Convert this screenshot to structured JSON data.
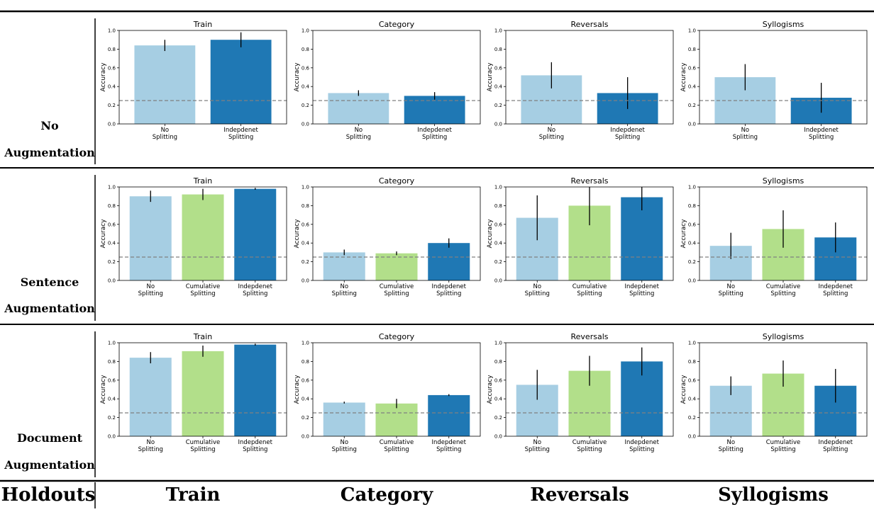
{
  "footer": {
    "row_header": "Holdouts",
    "columns": [
      "Train",
      "Category",
      "Reversals",
      "Syllogisms"
    ]
  },
  "colors": {
    "no_splitting": "#a6cee3",
    "cumulative_splitting": "#b2df8a",
    "independent_splitting": "#1f78b4",
    "baseline": "#808080",
    "errorbar": "#000000"
  },
  "chart_data": [
    {
      "row": "No Augmentation",
      "row_label_lines": [
        "No",
        "Augmentation"
      ],
      "panels": [
        {
          "type": "bar",
          "title": "Train",
          "ylabel": "Accuracy",
          "ylim": [
            0,
            1
          ],
          "yticks": [
            "0.0",
            "0.2",
            "0.4",
            "0.6",
            "0.8",
            "1.0"
          ],
          "baseline": 0.25,
          "bars": [
            {
              "label": [
                "No",
                "Splitting"
              ],
              "value": 0.84,
              "err": 0.06,
              "color": "no_splitting"
            },
            {
              "label": [
                "Indepdenet",
                "Splitting"
              ],
              "value": 0.9,
              "err": 0.08,
              "color": "independent_splitting"
            }
          ]
        },
        {
          "type": "bar",
          "title": "Category",
          "ylabel": "Accuracy",
          "ylim": [
            0,
            1
          ],
          "yticks": [
            "0.0",
            "0.2",
            "0.4",
            "0.6",
            "0.8",
            "1.0"
          ],
          "baseline": 0.25,
          "bars": [
            {
              "label": [
                "No",
                "Splitting"
              ],
              "value": 0.33,
              "err": 0.03,
              "color": "no_splitting"
            },
            {
              "label": [
                "Indepdenet",
                "Splitting"
              ],
              "value": 0.3,
              "err": 0.04,
              "color": "independent_splitting"
            }
          ]
        },
        {
          "type": "bar",
          "title": "Reversals",
          "ylabel": "Accuracy",
          "ylim": [
            0,
            1
          ],
          "yticks": [
            "0.0",
            "0.2",
            "0.4",
            "0.6",
            "0.8",
            "1.0"
          ],
          "baseline": 0.25,
          "bars": [
            {
              "label": [
                "No",
                "Splitting"
              ],
              "value": 0.52,
              "err": 0.14,
              "color": "no_splitting"
            },
            {
              "label": [
                "Indepdenet",
                "Splitting"
              ],
              "value": 0.33,
              "err": 0.17,
              "color": "independent_splitting"
            }
          ]
        },
        {
          "type": "bar",
          "title": "Syllogisms",
          "ylabel": "Accuracy",
          "ylim": [
            0,
            1
          ],
          "yticks": [
            "0.0",
            "0.2",
            "0.4",
            "0.6",
            "0.8",
            "1.0"
          ],
          "baseline": 0.25,
          "bars": [
            {
              "label": [
                "No",
                "Splitting"
              ],
              "value": 0.5,
              "err": 0.14,
              "color": "no_splitting"
            },
            {
              "label": [
                "Indepdenet",
                "Splitting"
              ],
              "value": 0.28,
              "err": 0.16,
              "color": "independent_splitting"
            }
          ]
        }
      ]
    },
    {
      "row": "Sentence Augmentation",
      "row_label_lines": [
        "Sentence",
        "Augmentation"
      ],
      "panels": [
        {
          "type": "bar",
          "title": "Train",
          "ylabel": "Accuracy",
          "ylim": [
            0,
            1
          ],
          "yticks": [
            "0.0",
            "0.2",
            "0.4",
            "0.6",
            "0.8",
            "1.0"
          ],
          "baseline": 0.25,
          "bars": [
            {
              "label": [
                "No",
                "Splitting"
              ],
              "value": 0.9,
              "err": 0.06,
              "color": "no_splitting"
            },
            {
              "label": [
                "Cumulative",
                "Splitting"
              ],
              "value": 0.92,
              "err": 0.06,
              "color": "cumulative_splitting"
            },
            {
              "label": [
                "Indepdenet",
                "Splitting"
              ],
              "value": 0.98,
              "err": 0.01,
              "color": "independent_splitting"
            }
          ]
        },
        {
          "type": "bar",
          "title": "Category",
          "ylabel": "Accuracy",
          "ylim": [
            0,
            1
          ],
          "yticks": [
            "0.0",
            "0.2",
            "0.4",
            "0.6",
            "0.8",
            "1.0"
          ],
          "baseline": 0.25,
          "bars": [
            {
              "label": [
                "No",
                "Splitting"
              ],
              "value": 0.3,
              "err": 0.03,
              "color": "no_splitting"
            },
            {
              "label": [
                "Cumulative",
                "Splitting"
              ],
              "value": 0.29,
              "err": 0.02,
              "color": "cumulative_splitting"
            },
            {
              "label": [
                "Indepdenet",
                "Splitting"
              ],
              "value": 0.4,
              "err": 0.05,
              "color": "independent_splitting"
            }
          ]
        },
        {
          "type": "bar",
          "title": "Reversals",
          "ylabel": "Accuracy",
          "ylim": [
            0,
            1
          ],
          "yticks": [
            "0.0",
            "0.2",
            "0.4",
            "0.6",
            "0.8",
            "1.0"
          ],
          "baseline": 0.25,
          "bars": [
            {
              "label": [
                "No",
                "Splitting"
              ],
              "value": 0.67,
              "err": 0.24,
              "color": "no_splitting"
            },
            {
              "label": [
                "Cumulative",
                "Splitting"
              ],
              "value": 0.8,
              "err": 0.21,
              "color": "cumulative_splitting"
            },
            {
              "label": [
                "Indepdenet",
                "Splitting"
              ],
              "value": 0.89,
              "err": 0.14,
              "color": "independent_splitting"
            }
          ]
        },
        {
          "type": "bar",
          "title": "Syllogisms",
          "ylabel": "Accuracy",
          "ylim": [
            0,
            1
          ],
          "yticks": [
            "0.0",
            "0.2",
            "0.4",
            "0.6",
            "0.8",
            "1.0"
          ],
          "baseline": 0.25,
          "bars": [
            {
              "label": [
                "No",
                "Splitting"
              ],
              "value": 0.37,
              "err": 0.14,
              "color": "no_splitting"
            },
            {
              "label": [
                "Cumulative",
                "Splitting"
              ],
              "value": 0.55,
              "err": 0.2,
              "color": "cumulative_splitting"
            },
            {
              "label": [
                "Indepdenet",
                "Splitting"
              ],
              "value": 0.46,
              "err": 0.16,
              "color": "independent_splitting"
            }
          ]
        }
      ]
    },
    {
      "row": "Document Augmentation",
      "row_label_lines": [
        "Document",
        "Augmentation"
      ],
      "panels": [
        {
          "type": "bar",
          "title": "Train",
          "ylabel": "Accuracy",
          "ylim": [
            0,
            1
          ],
          "yticks": [
            "0.0",
            "0.2",
            "0.4",
            "0.6",
            "0.8",
            "1.0"
          ],
          "baseline": 0.25,
          "bars": [
            {
              "label": [
                "No",
                "Splitting"
              ],
              "value": 0.84,
              "err": 0.06,
              "color": "no_splitting"
            },
            {
              "label": [
                "Cumulative",
                "Splitting"
              ],
              "value": 0.91,
              "err": 0.06,
              "color": "cumulative_splitting"
            },
            {
              "label": [
                "Indepdenet",
                "Splitting"
              ],
              "value": 0.98,
              "err": 0.01,
              "color": "independent_splitting"
            }
          ]
        },
        {
          "type": "bar",
          "title": "Category",
          "ylabel": "Accuracy",
          "ylim": [
            0,
            1
          ],
          "yticks": [
            "0.0",
            "0.2",
            "0.4",
            "0.6",
            "0.8",
            "1.0"
          ],
          "baseline": 0.25,
          "bars": [
            {
              "label": [
                "No",
                "Splitting"
              ],
              "value": 0.36,
              "err": 0.01,
              "color": "no_splitting"
            },
            {
              "label": [
                "Cumulative",
                "Splitting"
              ],
              "value": 0.35,
              "err": 0.05,
              "color": "cumulative_splitting"
            },
            {
              "label": [
                "Indepdenet",
                "Splitting"
              ],
              "value": 0.44,
              "err": 0.01,
              "color": "independent_splitting"
            }
          ]
        },
        {
          "type": "bar",
          "title": "Reversals",
          "ylabel": "Accuracy",
          "ylim": [
            0,
            1
          ],
          "yticks": [
            "0.0",
            "0.2",
            "0.4",
            "0.6",
            "0.8",
            "1.0"
          ],
          "baseline": 0.25,
          "bars": [
            {
              "label": [
                "No",
                "Splitting"
              ],
              "value": 0.55,
              "err": 0.16,
              "color": "no_splitting"
            },
            {
              "label": [
                "Cumulative",
                "Splitting"
              ],
              "value": 0.7,
              "err": 0.16,
              "color": "cumulative_splitting"
            },
            {
              "label": [
                "Indepdenet",
                "Splitting"
              ],
              "value": 0.8,
              "err": 0.15,
              "color": "independent_splitting"
            }
          ]
        },
        {
          "type": "bar",
          "title": "Syllogisms",
          "ylabel": "Accuracy",
          "ylim": [
            0,
            1
          ],
          "yticks": [
            "0.0",
            "0.2",
            "0.4",
            "0.6",
            "0.8",
            "1.0"
          ],
          "baseline": 0.25,
          "bars": [
            {
              "label": [
                "No",
                "Splitting"
              ],
              "value": 0.54,
              "err": 0.1,
              "color": "no_splitting"
            },
            {
              "label": [
                "Cumulative",
                "Splitting"
              ],
              "value": 0.67,
              "err": 0.14,
              "color": "cumulative_splitting"
            },
            {
              "label": [
                "Indepdenet",
                "Splitting"
              ],
              "value": 0.54,
              "err": 0.18,
              "color": "independent_splitting"
            }
          ]
        }
      ]
    }
  ]
}
